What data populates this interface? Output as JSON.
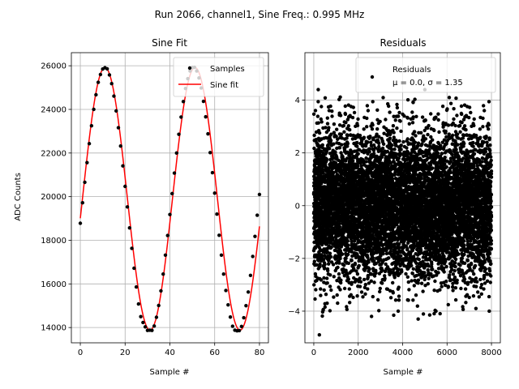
{
  "figure": {
    "suptitle": "Run 2066, channel1, Sine Freq.: 0.995 MHz"
  },
  "chart_data": [
    {
      "type": "line",
      "title": "Sine Fit",
      "xlabel": "Sample #",
      "ylabel": "ADC Counts",
      "xlim": [
        -4,
        84
      ],
      "ylim": [
        13300,
        26600
      ],
      "xticks": [
        "0",
        "20",
        "40",
        "60",
        "80"
      ],
      "yticks": [
        "14000",
        "16000",
        "18000",
        "20000",
        "22000",
        "24000",
        "26000"
      ],
      "grid": true,
      "legend_position": "top-right",
      "series": [
        {
          "name": "Samples",
          "style": "points",
          "color": "#000000",
          "x": [
            0,
            1,
            2,
            3,
            4,
            5,
            6,
            7,
            8,
            9,
            10,
            11,
            12,
            13,
            14,
            15,
            16,
            17,
            18,
            19,
            20,
            21,
            22,
            23,
            24,
            25,
            26,
            27,
            28,
            29,
            30,
            31,
            32,
            33,
            34,
            35,
            36,
            37,
            38,
            39,
            40,
            41,
            42,
            43,
            44,
            45,
            46,
            47,
            48,
            49,
            50,
            51,
            52,
            53,
            54,
            55,
            56,
            57,
            58,
            59,
            60,
            61,
            62,
            63,
            64,
            65,
            66,
            67,
            68,
            69,
            70,
            71,
            72,
            73,
            74,
            75,
            76,
            77,
            78,
            79,
            80
          ],
          "y": [
            18780,
            19720,
            20660,
            21560,
            22430,
            23250,
            24000,
            24670,
            25240,
            25600,
            25850,
            25910,
            25860,
            25580,
            25180,
            24610,
            23930,
            23160,
            22320,
            21410,
            20470,
            19530,
            18570,
            17630,
            16720,
            15860,
            15080,
            14500,
            14230,
            14030,
            13870,
            13880,
            13870,
            14070,
            14470,
            15010,
            15680,
            16450,
            17320,
            18220,
            19180,
            20140,
            21080,
            22000,
            22860,
            23650,
            24360,
            24960,
            25410,
            25760,
            25920,
            25930,
            25760,
            25440,
            24980,
            24370,
            23660,
            22880,
            22020,
            21100,
            20160,
            19200,
            18230,
            17320,
            16450,
            15700,
            15040,
            14480,
            14060,
            13880,
            13850,
            13860,
            14050,
            14450,
            15000,
            15630,
            16390,
            17260,
            18180,
            19150,
            20100
          ]
        },
        {
          "name": "Sine fit",
          "style": "line",
          "color": "#ff0000",
          "model": {
            "offset": 19900,
            "amplitude": 6020,
            "period": 40.2,
            "peak_sample": 11
          }
        }
      ]
    },
    {
      "type": "scatter",
      "title": "Residuals",
      "xlabel": "Sample #",
      "ylabel": "",
      "xlim": [
        -400,
        8400
      ],
      "ylim": [
        -5.2,
        5.8
      ],
      "xticks": [
        "0",
        "2000",
        "4000",
        "6000",
        "8000"
      ],
      "yticks": [
        "−4",
        "−2",
        "0",
        "2",
        "4"
      ],
      "grid": true,
      "legend_position": "top-right",
      "series": [
        {
          "name": "Residuals",
          "label_line2": "μ = 0.0, σ = 1.35",
          "color": "#000000",
          "n_points": 8000,
          "mean": 0.0,
          "std": 1.35,
          "x_range": [
            0,
            8000
          ]
        }
      ],
      "highlighted_points": [
        {
          "x": 200,
          "y": 4.4
        },
        {
          "x": 250,
          "y": -4.9
        },
        {
          "x": 600,
          "y": -3.7
        },
        {
          "x": 2600,
          "y": -4.2
        },
        {
          "x": 3800,
          "y": -4.0
        },
        {
          "x": 4700,
          "y": -4.3
        },
        {
          "x": 5500,
          "y": -4.0
        },
        {
          "x": 7300,
          "y": -3.9
        },
        {
          "x": 7900,
          "y": -4.0
        },
        {
          "x": 5000,
          "y": 4.4
        },
        {
          "x": 6100,
          "y": 4.1
        }
      ]
    }
  ]
}
